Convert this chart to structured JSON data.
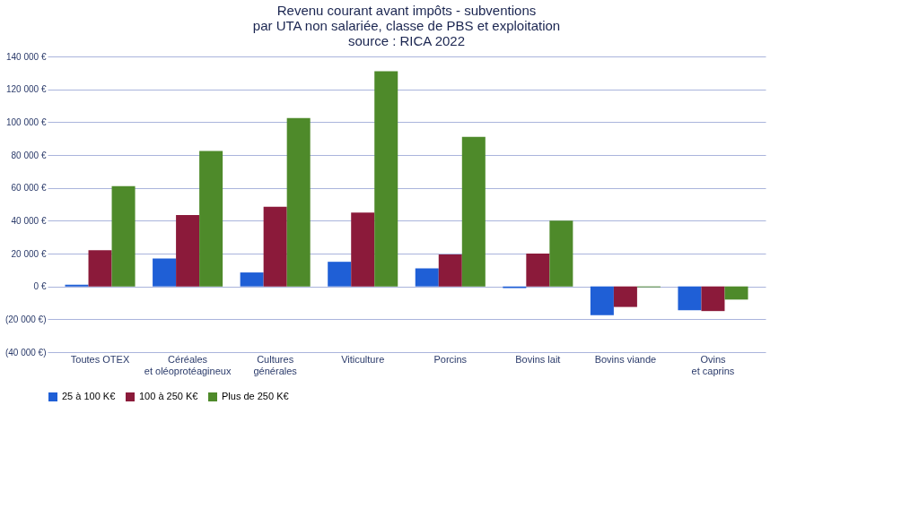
{
  "chart_data": {
    "type": "bar",
    "title": [
      "Revenu courant avant impôts - subventions",
      "par UTA non salariée, classe de PBS et exploitation",
      "source : RICA 2022"
    ],
    "categories": [
      "Toutes OTEX",
      "Céréales et oléoprotéagineux",
      "Cultures générales",
      "Viticulture",
      "Porcins",
      "Bovins lait",
      "Bovins viande",
      "Ovins et caprins"
    ],
    "series": [
      {
        "name": "25 à 100 K€",
        "color": "#1f5fd6",
        "values": [
          1000,
          17000,
          8500,
          15000,
          11000,
          -1000,
          -17500,
          -14500
        ]
      },
      {
        "name": "100 à 250 K€",
        "color": "#8b1a3a",
        "values": [
          22000,
          43500,
          48500,
          45000,
          19500,
          20000,
          -12500,
          -15000
        ]
      },
      {
        "name": "Plus de 250 K€",
        "color": "#4e8a2a",
        "values": [
          61000,
          82500,
          102500,
          131000,
          91000,
          40000,
          -500,
          -8000
        ]
      }
    ],
    "ylim": [
      -40000,
      140000
    ],
    "yticks": [
      {
        "value": -40000,
        "label": "(40 000 €)"
      },
      {
        "value": -20000,
        "label": "(20 000 €)"
      },
      {
        "value": 0,
        "label": "0 €"
      },
      {
        "value": 20000,
        "label": "20 000 €"
      },
      {
        "value": 40000,
        "label": "40 000 €"
      },
      {
        "value": 60000,
        "label": "60 000 €"
      },
      {
        "value": 80000,
        "label": "80 000 €"
      },
      {
        "value": 100000,
        "label": "100 000 €"
      },
      {
        "value": 120000,
        "label": "120 000 €"
      },
      {
        "value": 140000,
        "label": "140 000 €"
      }
    ],
    "grid": "y",
    "legend": "bottom"
  }
}
